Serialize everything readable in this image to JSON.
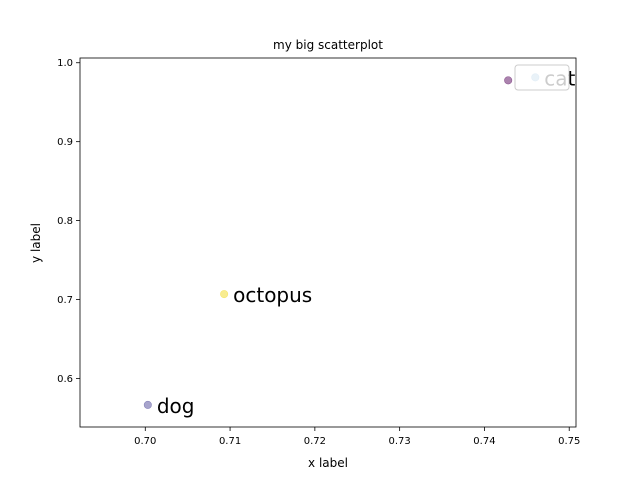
{
  "chart_data": {
    "type": "scatter",
    "title": "my big scatterplot",
    "xlabel": "x label",
    "ylabel": "y label",
    "xlim": [
      0.6923,
      0.7508
    ],
    "ylim": [
      0.5385,
      1.006
    ],
    "xticks": [
      "0.70",
      "0.71",
      "0.72",
      "0.73",
      "0.74",
      "0.75"
    ],
    "xtick_values": [
      0.7,
      0.71,
      0.72,
      0.73,
      0.74,
      0.75
    ],
    "yticks": [
      "0.6",
      "0.7",
      "0.8",
      "0.9",
      "1.0"
    ],
    "ytick_values": [
      0.6,
      0.7,
      0.8,
      0.9,
      1.0
    ],
    "grid": false,
    "legend": "top-right",
    "points": [
      {
        "x": 0.7003,
        "y": 0.5665,
        "label": "dog",
        "color": "#8a86bb"
      },
      {
        "x": 0.7093,
        "y": 0.7069,
        "label": "octopus",
        "color": "#f5e56a"
      },
      {
        "x": 0.7428,
        "y": 0.9777,
        "label": "",
        "color": "#8f5a93"
      },
      {
        "x": 0.746,
        "y": 0.9815,
        "label": "cat",
        "color": "#6fa8d0"
      }
    ]
  }
}
